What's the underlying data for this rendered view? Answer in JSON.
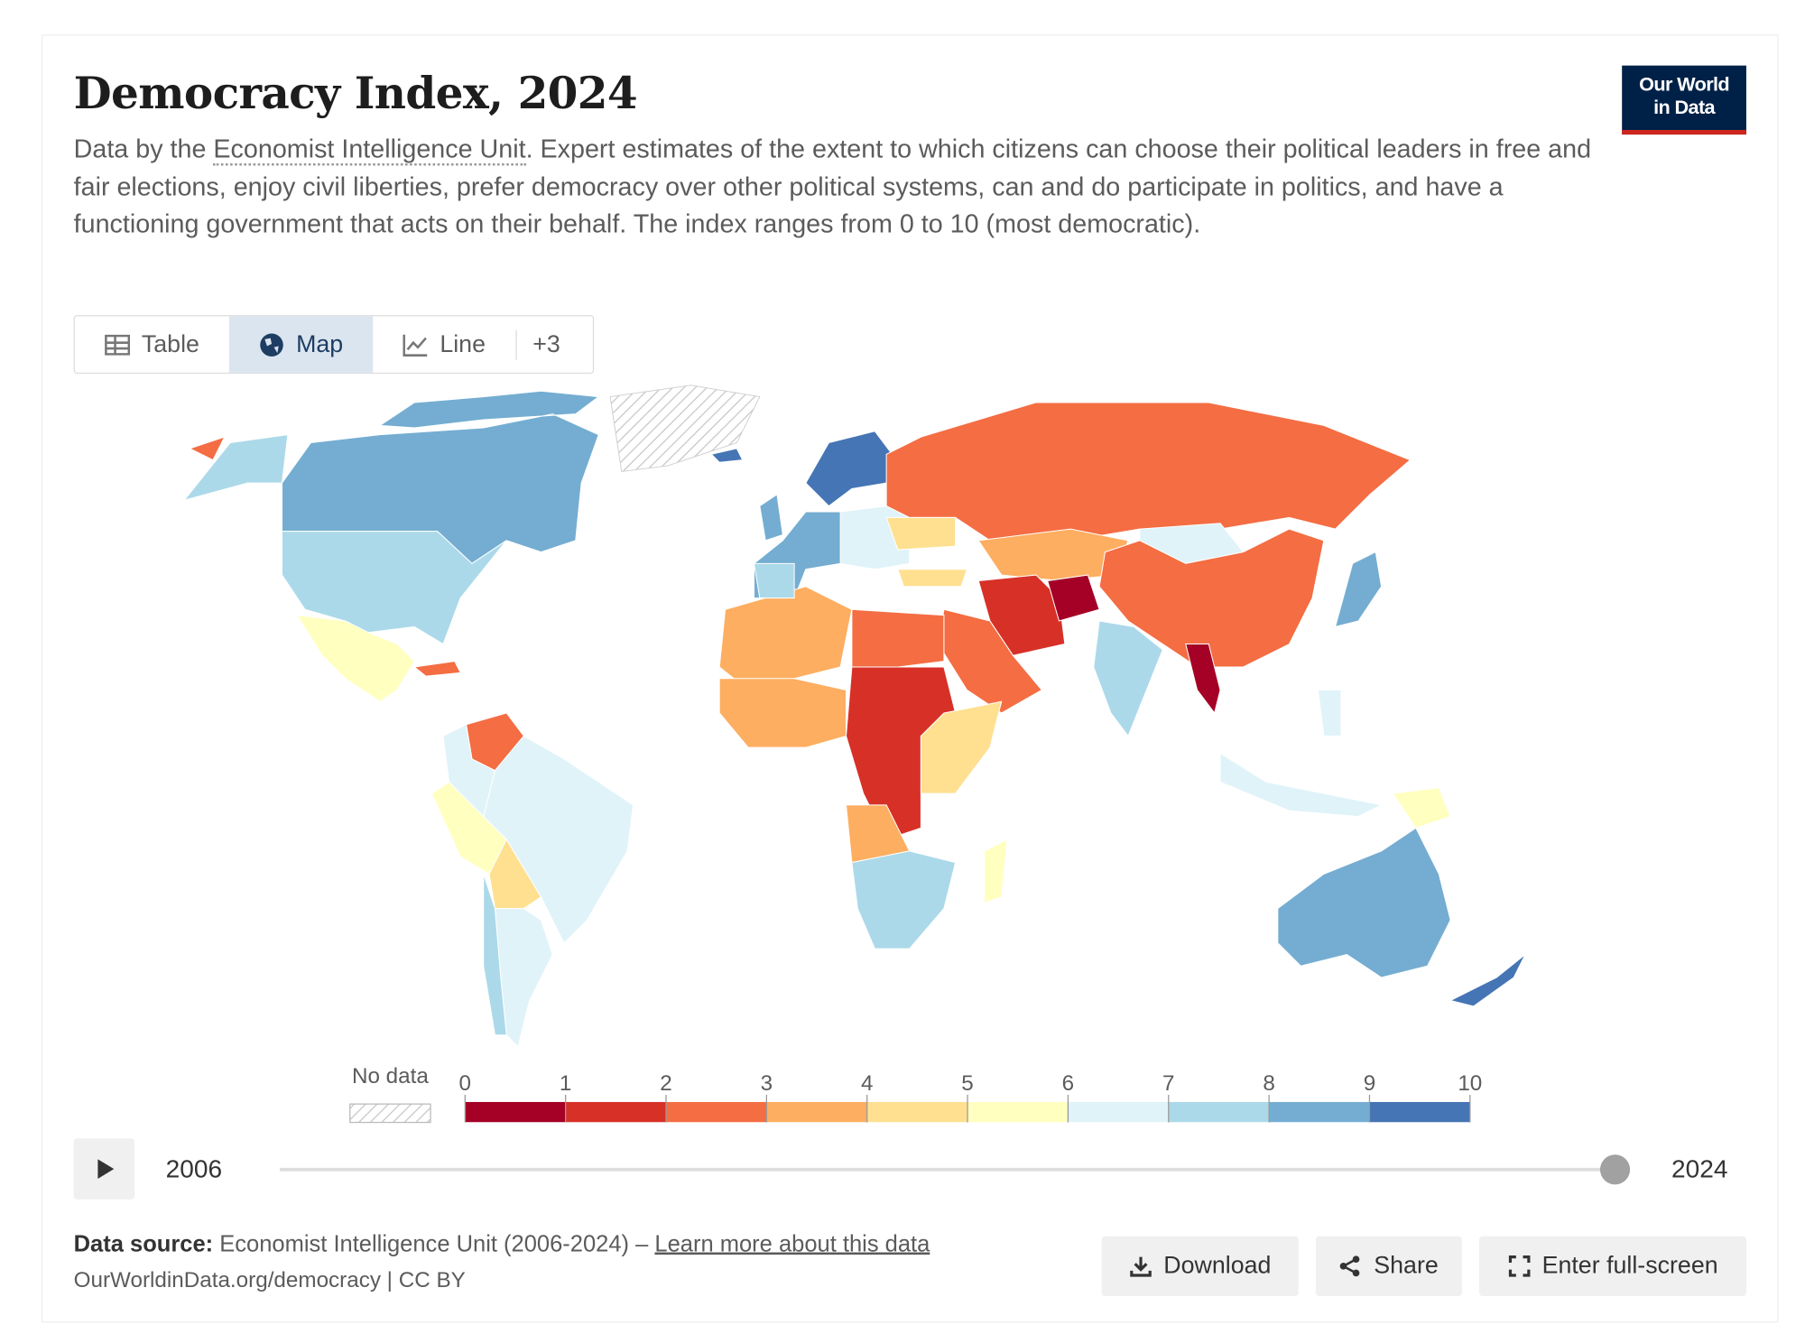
{
  "header": {
    "title": "Democracy Index, 2024",
    "logo_lines": [
      "Our World",
      "in Data"
    ]
  },
  "subtitle": {
    "before": "Data by the",
    "link": "Economist Intelligence Unit",
    "after": ". Expert estimates of the extent to which citizens can choose their political leaders in free and fair elections, enjoy civil liberties, prefer democracy over other political systems, can and do participate in politics, and have a functioning government that acts on their behalf. The index ranges from 0 to 10 (most democratic)."
  },
  "tabs": [
    "Table",
    "Map",
    "Line",
    "+3"
  ],
  "chart_data": {
    "type": "map",
    "legend": {
      "no_data_label": "No data",
      "bins": [
        0,
        1,
        2,
        3,
        4,
        5,
        6,
        7,
        8,
        9,
        10
      ],
      "colors": [
        "#a50026",
        "#d73027",
        "#f46d43",
        "#fdae61",
        "#fee090",
        "#ffffbf",
        "#e0f3f8",
        "#abd9e9",
        "#74add1",
        "#4575b4"
      ]
    },
    "regions": {
      "values": [
        8.7,
        7.8,
        5.3,
        2.6,
        2.3,
        6.5,
        6.3,
        5.7,
        4.2,
        6.5,
        7.8,
        8.0,
        9.5,
        6.5,
        2.0,
        3.1,
        6.5,
        2.1,
        1.9,
        0.3,
        2.0,
        7.3,
        0.9,
        3.6,
        2.5,
        1.5,
        3.8,
        4.8,
        3.9,
        7.2,
        5.7,
        6.4,
        6.6,
        8.4,
        8.9,
        9.6,
        5.9,
        9.4,
        8.3,
        7.9,
        4.3,
        4.9
      ]
    },
    "timeline": {
      "start": 2006,
      "end": 2024,
      "selected": 2024
    }
  },
  "footer": {
    "source_label": "Data source:",
    "source": "Economist Intelligence Unit (2006-2024) –",
    "link": "Learn more about this data",
    "url_line": "OurWorldinData.org/democracy | CC BY"
  },
  "buttons": [
    "Download",
    "Share",
    "Enter full-screen"
  ]
}
